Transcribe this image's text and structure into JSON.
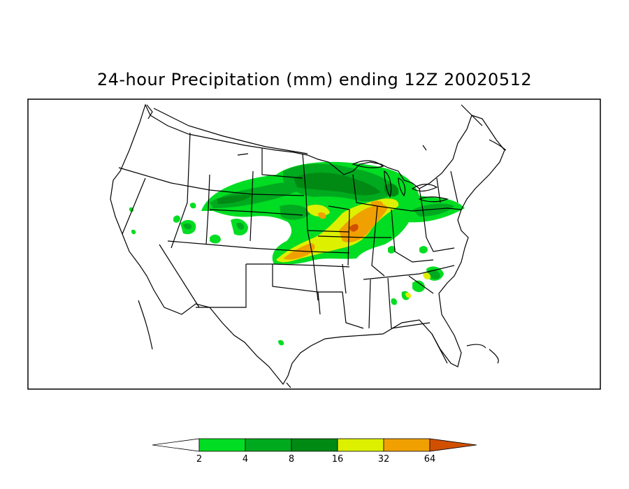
{
  "title": "24-hour Precipitation (mm) ending 12Z 20020512",
  "colorbar": {
    "levels": [
      "2",
      "4",
      "8",
      "16",
      "32",
      "64"
    ],
    "colors": [
      "#ffffff",
      "#00dd22",
      "#00aa1f",
      "#008a14",
      "#ddf000",
      "#f0a000",
      "#d05000"
    ]
  },
  "colors": {
    "background": "#ffffff",
    "border": "#000000"
  }
}
